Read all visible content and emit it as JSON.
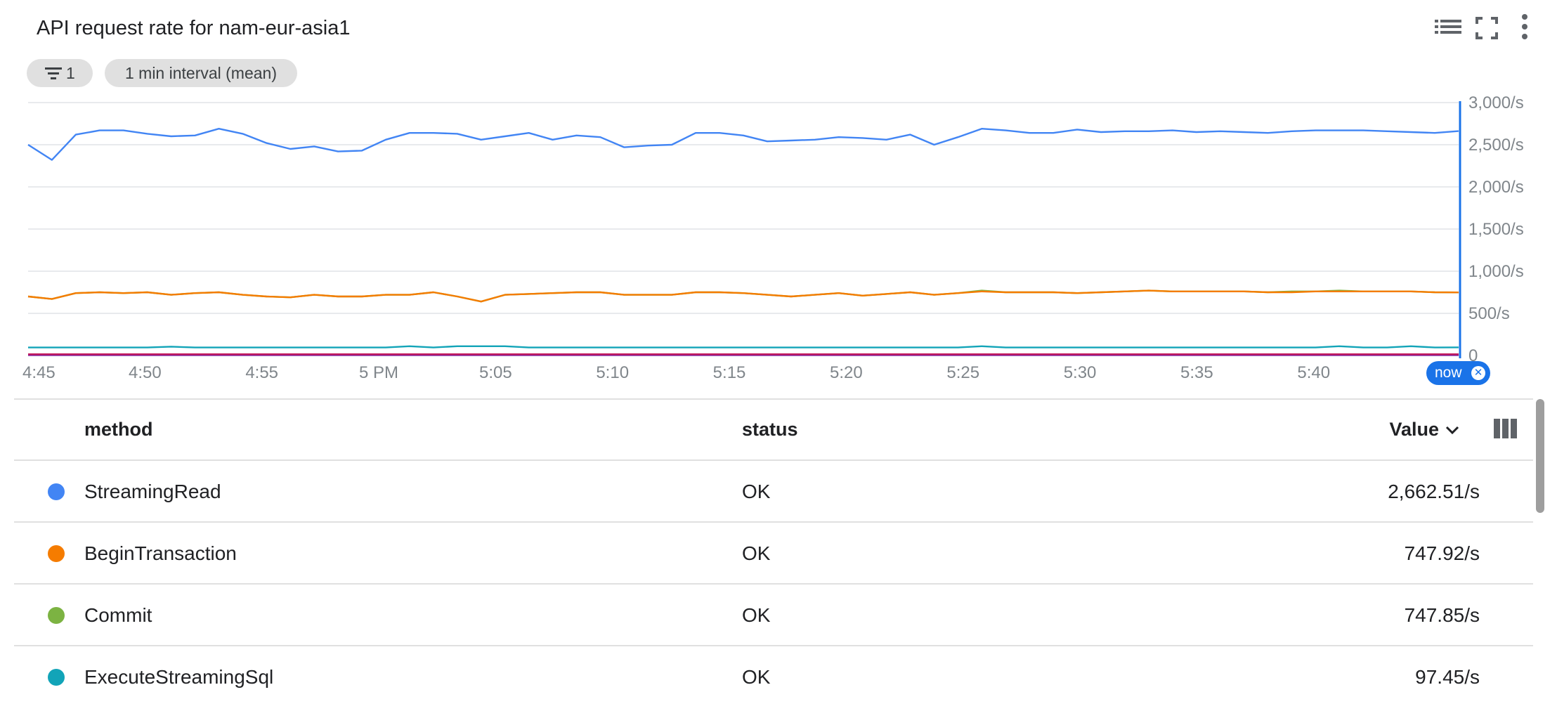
{
  "header": {
    "title": "API request rate for nam-eur-asia1",
    "icons": [
      "legend-list-icon",
      "fullscreen-icon",
      "more-vert-icon"
    ]
  },
  "chips": {
    "filter_count": "1",
    "interval": "1 min interval (mean)"
  },
  "chart_data": {
    "type": "line",
    "x_tick_labels": [
      "4:45",
      "4:50",
      "4:55",
      "5 PM",
      "5:05",
      "5:10",
      "5:15",
      "5:20",
      "5:25",
      "5:30",
      "5:35",
      "5:40"
    ],
    "y_tick_labels": [
      "0",
      "500/s",
      "1,000/s",
      "1,500/s",
      "2,000/s",
      "2,500/s",
      "3,000/s"
    ],
    "ylim": [
      0,
      3000
    ],
    "x_range_minutes": [
      0,
      61.2
    ],
    "grid": true,
    "now_marker": "now",
    "series": [
      {
        "name": "StreamingRead",
        "color": "#4285f4",
        "values": [
          2500,
          2320,
          2620,
          2670,
          2670,
          2630,
          2600,
          2610,
          2690,
          2630,
          2520,
          2450,
          2480,
          2420,
          2430,
          2560,
          2640,
          2640,
          2630,
          2560,
          2600,
          2640,
          2560,
          2610,
          2590,
          2470,
          2490,
          2500,
          2640,
          2640,
          2610,
          2540,
          2550,
          2560,
          2590,
          2580,
          2560,
          2620,
          2500,
          2590,
          2690,
          2670,
          2640,
          2640,
          2680,
          2650,
          2660,
          2660,
          2670,
          2650,
          2660,
          2650,
          2640,
          2660,
          2670,
          2670,
          2670,
          2660,
          2650,
          2640,
          2662
        ]
      },
      {
        "name": "BeginTransaction",
        "color": "#f57c00",
        "values": [
          700,
          670,
          740,
          750,
          740,
          750,
          720,
          740,
          750,
          720,
          700,
          690,
          720,
          700,
          700,
          720,
          720,
          750,
          700,
          640,
          720,
          730,
          740,
          750,
          750,
          720,
          720,
          720,
          750,
          750,
          740,
          720,
          700,
          720,
          740,
          710,
          730,
          750,
          720,
          740,
          760,
          750,
          750,
          750,
          740,
          750,
          760,
          770,
          760,
          760,
          760,
          760,
          750,
          750,
          760,
          760,
          760,
          760,
          760,
          750,
          748
        ]
      },
      {
        "name": "Commit",
        "color": "#7cb342",
        "values": [
          700,
          670,
          740,
          750,
          740,
          750,
          720,
          740,
          750,
          720,
          700,
          690,
          720,
          700,
          700,
          720,
          720,
          750,
          700,
          640,
          720,
          730,
          740,
          750,
          750,
          720,
          720,
          720,
          750,
          750,
          740,
          720,
          700,
          720,
          740,
          710,
          730,
          750,
          720,
          740,
          770,
          750,
          750,
          750,
          740,
          750,
          760,
          770,
          760,
          760,
          760,
          760,
          750,
          760,
          760,
          770,
          760,
          760,
          760,
          750,
          748
        ]
      },
      {
        "name": "ExecuteStreamingSql",
        "color": "#12a4b8",
        "values": [
          95,
          95,
          95,
          95,
          95,
          95,
          105,
          95,
          95,
          95,
          95,
          95,
          95,
          95,
          95,
          95,
          110,
          95,
          110,
          110,
          110,
          95,
          95,
          95,
          95,
          95,
          95,
          95,
          95,
          95,
          95,
          95,
          95,
          95,
          95,
          95,
          95,
          95,
          95,
          95,
          110,
          95,
          95,
          95,
          95,
          95,
          95,
          95,
          95,
          95,
          95,
          95,
          95,
          95,
          95,
          110,
          95,
          95,
          110,
          95,
          97
        ]
      },
      {
        "color": "#c2185b",
        "values": [
          15,
          15,
          15,
          15,
          15,
          15,
          15,
          15,
          15,
          15,
          15,
          15,
          15,
          15,
          15,
          15,
          15,
          15,
          15,
          15,
          15,
          15,
          15,
          15,
          15,
          15,
          15,
          15,
          15,
          15,
          15,
          15,
          15,
          15,
          15,
          15,
          15,
          15,
          15,
          15,
          15,
          15,
          15,
          15,
          15,
          15,
          15,
          15,
          15,
          15,
          15,
          15,
          15,
          15,
          15,
          15,
          15,
          15,
          15,
          15,
          15
        ]
      },
      {
        "color": "#7b1fa2",
        "values": [
          5,
          5,
          5,
          5,
          5,
          5,
          5,
          5,
          5,
          5,
          5,
          5,
          5,
          5,
          5,
          5,
          5,
          5,
          5,
          5,
          5,
          5,
          5,
          5,
          5,
          5,
          5,
          5,
          5,
          5,
          5,
          5,
          5,
          5,
          5,
          5,
          5,
          5,
          5,
          5,
          5,
          5,
          5,
          5,
          5,
          5,
          5,
          5,
          5,
          5,
          5,
          5,
          5,
          5,
          5,
          5,
          5,
          5,
          5,
          5,
          5
        ]
      }
    ]
  },
  "table": {
    "columns": {
      "method": "method",
      "status": "status",
      "value": "Value"
    },
    "rows": [
      {
        "method": "StreamingRead",
        "status": "OK",
        "value": "2,662.51/s",
        "color": "#4285f4"
      },
      {
        "method": "BeginTransaction",
        "status": "OK",
        "value": "747.92/s",
        "color": "#f57c00"
      },
      {
        "method": "Commit",
        "status": "OK",
        "value": "747.85/s",
        "color": "#7cb342"
      },
      {
        "method": "ExecuteStreamingSql",
        "status": "OK",
        "value": "97.45/s",
        "color": "#12a4b8"
      }
    ]
  }
}
